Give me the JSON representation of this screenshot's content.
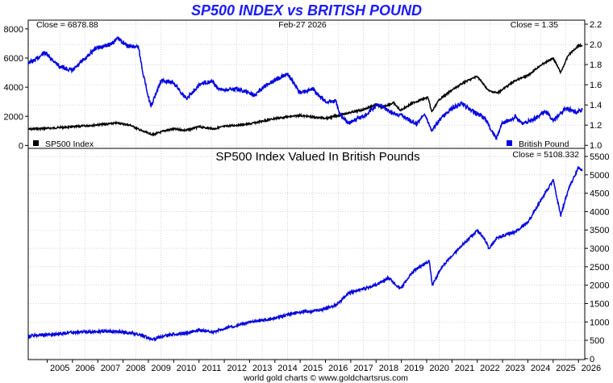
{
  "title": "SP500 INDEX vs BRITISH POUND",
  "footer": "world gold charts © www.goldchartsrus.com",
  "colors": {
    "title": "#1a1aff",
    "sp500": "#000000",
    "pound": "#0000e0",
    "ratio": "#0000e0"
  },
  "chart_data": [
    {
      "type": "line",
      "panel": "top",
      "date_label": "Feb-27  2026",
      "left_close_label": "Close = 6878.88",
      "right_close_label": "Close = 1.35",
      "legend": [
        {
          "name": "SP500 Index",
          "color": "#000000",
          "placement": "bottom-left"
        },
        {
          "name": "British Pound",
          "color": "#0000e0",
          "placement": "bottom-right"
        }
      ],
      "xlim": [
        2004.25,
        2026.25
      ],
      "x_ticks": [
        2005,
        2006,
        2007,
        2008,
        2009,
        2010,
        2011,
        2012,
        2013,
        2014,
        2015,
        2016,
        2017,
        2018,
        2019,
        2020,
        2021,
        2022,
        2023,
        2024,
        2025,
        2026
      ],
      "y_left": {
        "lim": [
          -200,
          8600
        ],
        "ticks": [
          0,
          2000,
          4000,
          6000,
          8000
        ]
      },
      "y_right": {
        "lim": [
          0.97,
          2.24
        ],
        "ticks": [
          1.0,
          1.2,
          1.4,
          1.6,
          1.8,
          2.0,
          2.2
        ]
      },
      "grid": true,
      "series": [
        {
          "name": "SP500 Index",
          "axis": "left",
          "points": [
            [
              2004.25,
              1110
            ],
            [
              2005.0,
              1180
            ],
            [
              2006.0,
              1270
            ],
            [
              2007.0,
              1420
            ],
            [
              2007.8,
              1540
            ],
            [
              2008.3,
              1380
            ],
            [
              2008.8,
              950
            ],
            [
              2009.2,
              740
            ],
            [
              2009.7,
              1040
            ],
            [
              2010.0,
              1120
            ],
            [
              2010.5,
              1040
            ],
            [
              2011.0,
              1280
            ],
            [
              2011.6,
              1140
            ],
            [
              2012.0,
              1310
            ],
            [
              2013.0,
              1480
            ],
            [
              2014.0,
              1850
            ],
            [
              2015.0,
              2060
            ],
            [
              2015.6,
              1920
            ],
            [
              2016.1,
              1880
            ],
            [
              2016.8,
              2190
            ],
            [
              2017.5,
              2460
            ],
            [
              2018.0,
              2800
            ],
            [
              2018.2,
              2620
            ],
            [
              2018.7,
              2920
            ],
            [
              2018.95,
              2400
            ],
            [
              2019.5,
              2960
            ],
            [
              2020.05,
              3300
            ],
            [
              2020.2,
              2300
            ],
            [
              2020.5,
              3150
            ],
            [
              2021.0,
              3800
            ],
            [
              2021.5,
              4350
            ],
            [
              2022.0,
              4750
            ],
            [
              2022.45,
              3750
            ],
            [
              2022.8,
              3600
            ],
            [
              2023.5,
              4450
            ],
            [
              2024.0,
              4800
            ],
            [
              2024.5,
              5500
            ],
            [
              2025.0,
              6000
            ],
            [
              2025.3,
              5000
            ],
            [
              2025.6,
              6200
            ],
            [
              2026.0,
              6850
            ],
            [
              2026.15,
              6878.88
            ]
          ]
        },
        {
          "name": "British Pound",
          "axis": "right",
          "points": [
            [
              2004.25,
              1.82
            ],
            [
              2004.5,
              1.84
            ],
            [
              2004.9,
              1.92
            ],
            [
              2005.5,
              1.78
            ],
            [
              2006.0,
              1.74
            ],
            [
              2006.5,
              1.86
            ],
            [
              2006.9,
              1.96
            ],
            [
              2007.5,
              2.0
            ],
            [
              2007.8,
              2.06
            ],
            [
              2008.2,
              1.98
            ],
            [
              2008.6,
              1.98
            ],
            [
              2008.8,
              1.7
            ],
            [
              2009.1,
              1.38
            ],
            [
              2009.5,
              1.64
            ],
            [
              2010.0,
              1.62
            ],
            [
              2010.5,
              1.46
            ],
            [
              2011.0,
              1.6
            ],
            [
              2011.5,
              1.64
            ],
            [
              2011.8,
              1.55
            ],
            [
              2012.5,
              1.56
            ],
            [
              2013.2,
              1.5
            ],
            [
              2013.8,
              1.62
            ],
            [
              2014.5,
              1.71
            ],
            [
              2015.0,
              1.52
            ],
            [
              2015.5,
              1.56
            ],
            [
              2016.0,
              1.43
            ],
            [
              2016.4,
              1.44
            ],
            [
              2016.55,
              1.32
            ],
            [
              2016.9,
              1.22
            ],
            [
              2017.5,
              1.29
            ],
            [
              2018.1,
              1.41
            ],
            [
              2018.6,
              1.32
            ],
            [
              2019.0,
              1.3
            ],
            [
              2019.6,
              1.21
            ],
            [
              2019.9,
              1.32
            ],
            [
              2020.2,
              1.15
            ],
            [
              2020.5,
              1.25
            ],
            [
              2021.0,
              1.37
            ],
            [
              2021.4,
              1.41
            ],
            [
              2021.8,
              1.34
            ],
            [
              2022.3,
              1.27
            ],
            [
              2022.75,
              1.07
            ],
            [
              2023.0,
              1.22
            ],
            [
              2023.5,
              1.28
            ],
            [
              2023.8,
              1.21
            ],
            [
              2024.3,
              1.27
            ],
            [
              2024.7,
              1.34
            ],
            [
              2025.0,
              1.24
            ],
            [
              2025.5,
              1.37
            ],
            [
              2025.9,
              1.33
            ],
            [
              2026.15,
              1.35
            ]
          ]
        }
      ]
    },
    {
      "type": "line",
      "panel": "bottom",
      "title": "SP500 Index Valued In British Pounds",
      "close_label": "Close = 5108.332",
      "xlim": [
        2004.25,
        2026.25
      ],
      "x_ticks": [
        2005,
        2006,
        2007,
        2008,
        2009,
        2010,
        2011,
        2012,
        2013,
        2014,
        2015,
        2016,
        2017,
        2018,
        2019,
        2020,
        2021,
        2022,
        2023,
        2024,
        2025,
        2026
      ],
      "y_right": {
        "lim": [
          -25,
          5720
        ],
        "ticks": [
          0,
          500,
          1000,
          1500,
          2000,
          2500,
          3000,
          3500,
          4000,
          4500,
          5000,
          5500
        ]
      },
      "grid": true,
      "series": [
        {
          "name": "",
          "axis": "right",
          "points": [
            [
              2004.25,
              620
            ],
            [
              2005.0,
              650
            ],
            [
              2006.0,
              720
            ],
            [
              2007.0,
              740
            ],
            [
              2007.8,
              740
            ],
            [
              2008.5,
              680
            ],
            [
              2009.2,
              530
            ],
            [
              2009.8,
              650
            ],
            [
              2010.5,
              700
            ],
            [
              2011.0,
              780
            ],
            [
              2011.6,
              720
            ],
            [
              2012.0,
              820
            ],
            [
              2013.0,
              990
            ],
            [
              2014.0,
              1100
            ],
            [
              2014.8,
              1250
            ],
            [
              2015.5,
              1300
            ],
            [
              2016.0,
              1350
            ],
            [
              2016.5,
              1500
            ],
            [
              2016.9,
              1780
            ],
            [
              2017.5,
              1900
            ],
            [
              2018.0,
              2000
            ],
            [
              2018.5,
              2200
            ],
            [
              2018.95,
              1900
            ],
            [
              2019.5,
              2400
            ],
            [
              2020.1,
              2650
            ],
            [
              2020.22,
              2000
            ],
            [
              2020.6,
              2500
            ],
            [
              2021.0,
              2800
            ],
            [
              2021.5,
              3150
            ],
            [
              2022.0,
              3500
            ],
            [
              2022.3,
              3250
            ],
            [
              2022.45,
              3000
            ],
            [
              2022.8,
              3300
            ],
            [
              2023.5,
              3450
            ],
            [
              2024.0,
              3700
            ],
            [
              2024.5,
              4300
            ],
            [
              2025.0,
              4850
            ],
            [
              2025.3,
              3900
            ],
            [
              2025.6,
              4600
            ],
            [
              2026.0,
              5200
            ],
            [
              2026.15,
              5108.332
            ]
          ]
        }
      ]
    }
  ]
}
